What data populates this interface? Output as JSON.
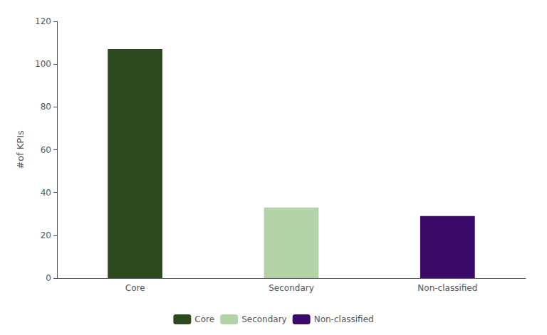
{
  "chart_data": {
    "type": "bar",
    "categories": [
      "Core",
      "Secondary",
      "Non-classified"
    ],
    "values": [
      107,
      33,
      29
    ],
    "colors": [
      "#2d4a1e",
      "#b2d4a8",
      "#3b0a6b"
    ],
    "ylabel": "#of KPIs",
    "ylim": [
      0,
      120
    ],
    "yticks": [
      0,
      20,
      40,
      60,
      80,
      100,
      120
    ],
    "grid": false,
    "legend": "bottom"
  }
}
